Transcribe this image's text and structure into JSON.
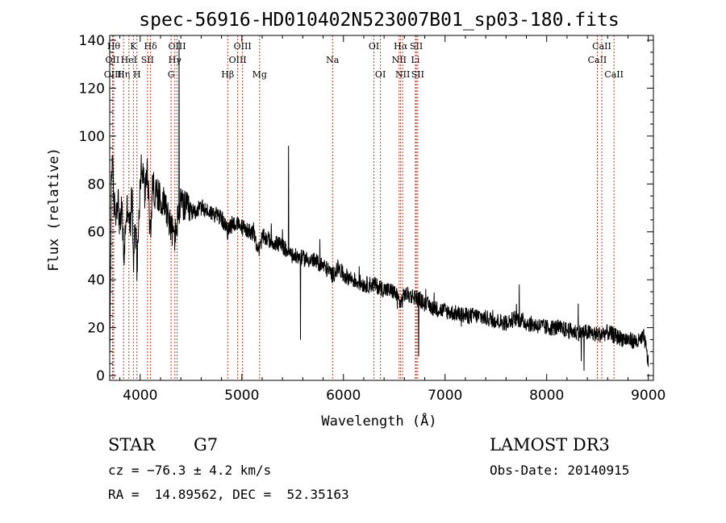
{
  "chart_data": {
    "type": "line",
    "title": "spec-56916-HD010402N523007B01_sp03-180.fits",
    "xlabel": "Wavelength (Å)",
    "ylabel": "Flux (relative)",
    "xlim": [
      3700,
      9050
    ],
    "ylim": [
      -2,
      142
    ],
    "x_ticks": [
      4000,
      5000,
      6000,
      7000,
      8000,
      9000
    ],
    "y_ticks": [
      0,
      20,
      40,
      60,
      80,
      100,
      120,
      140
    ],
    "x_tick_labels": [
      "4000",
      "5000",
      "6000",
      "7000",
      "8000",
      "9000"
    ],
    "y_tick_labels": [
      "0",
      "20",
      "40",
      "60",
      "80",
      "100",
      "120",
      "140"
    ],
    "spectrum_anchors": [
      [
        3700,
        2
      ],
      [
        3705,
        30
      ],
      [
        3715,
        80
      ],
      [
        3725,
        92
      ],
      [
        3740,
        72
      ],
      [
        3760,
        68
      ],
      [
        3780,
        75
      ],
      [
        3800,
        62
      ],
      [
        3820,
        70
      ],
      [
        3840,
        48
      ],
      [
        3860,
        66
      ],
      [
        3880,
        72
      ],
      [
        3900,
        60
      ],
      [
        3920,
        78
      ],
      [
        3935,
        42
      ],
      [
        3950,
        68
      ],
      [
        3968,
        45
      ],
      [
        3990,
        70
      ],
      [
        4010,
        88
      ],
      [
        4030,
        82
      ],
      [
        4050,
        75
      ],
      [
        4070,
        86
      ],
      [
        4101,
        58
      ],
      [
        4120,
        80
      ],
      [
        4150,
        76
      ],
      [
        4200,
        74
      ],
      [
        4250,
        72
      ],
      [
        4300,
        62
      ],
      [
        4340,
        58
      ],
      [
        4400,
        72
      ],
      [
        4450,
        70
      ],
      [
        4500,
        68
      ],
      [
        4600,
        70
      ],
      [
        4700,
        68
      ],
      [
        4800,
        66
      ],
      [
        4861,
        60
      ],
      [
        4900,
        64
      ],
      [
        5000,
        62
      ],
      [
        5100,
        60
      ],
      [
        5175,
        52
      ],
      [
        5200,
        58
      ],
      [
        5300,
        56
      ],
      [
        5400,
        54
      ],
      [
        5500,
        50
      ],
      [
        5600,
        49
      ],
      [
        5700,
        48
      ],
      [
        5800,
        46
      ],
      [
        5893,
        42
      ],
      [
        5950,
        45
      ],
      [
        6000,
        42
      ],
      [
        6100,
        40
      ],
      [
        6200,
        38
      ],
      [
        6300,
        38
      ],
      [
        6400,
        36
      ],
      [
        6500,
        35
      ],
      [
        6563,
        30
      ],
      [
        6600,
        34
      ],
      [
        6700,
        33
      ],
      [
        6800,
        30
      ],
      [
        6900,
        28
      ],
      [
        7000,
        27
      ],
      [
        7100,
        26
      ],
      [
        7200,
        25
      ],
      [
        7300,
        25
      ],
      [
        7400,
        24
      ],
      [
        7500,
        23
      ],
      [
        7600,
        22
      ],
      [
        7700,
        24
      ],
      [
        7800,
        22
      ],
      [
        7900,
        21
      ],
      [
        8000,
        20
      ],
      [
        8100,
        20
      ],
      [
        8200,
        19
      ],
      [
        8300,
        18
      ],
      [
        8400,
        18
      ],
      [
        8500,
        17
      ],
      [
        8600,
        18
      ],
      [
        8700,
        16
      ],
      [
        8800,
        15
      ],
      [
        8900,
        14
      ],
      [
        8960,
        16
      ],
      [
        9000,
        5
      ]
    ],
    "spikes": [
      [
        4383,
        140
      ],
      [
        5460,
        96
      ],
      [
        5577,
        15
      ],
      [
        7730,
        38
      ],
      [
        8340,
        6
      ],
      [
        8368,
        2
      ],
      [
        8310,
        30
      ],
      [
        6740,
        8
      ]
    ],
    "line_markers": [
      {
        "x": 3740,
        "labels": [
          "Hθ"
        ],
        "row": 0
      },
      {
        "x": 3727,
        "labels": [
          "OII"
        ],
        "row": 1
      },
      {
        "x": 3730,
        "labels": [
          "OIII"
        ],
        "row": 2
      },
      {
        "x": 3836,
        "labels": [
          "Hη"
        ],
        "row": 2
      },
      {
        "x": 3889,
        "labels": [
          "HeI"
        ],
        "row": 1
      },
      {
        "x": 3933,
        "labels": [
          "K"
        ],
        "row": 0
      },
      {
        "x": 3968,
        "labels": [
          "H"
        ],
        "row": 2
      },
      {
        "x": 4072,
        "labels": [
          "SII"
        ],
        "row": 1
      },
      {
        "x": 4102,
        "labels": [
          "Hδ"
        ],
        "row": 0
      },
      {
        "x": 4304,
        "labels": [
          "G"
        ],
        "row": 2
      },
      {
        "x": 4341,
        "labels": [
          "Hγ"
        ],
        "row": 1
      },
      {
        "x": 4363,
        "labels": [
          "OIII"
        ],
        "row": 0
      },
      {
        "x": 4861,
        "labels": [
          "Hβ"
        ],
        "row": 2
      },
      {
        "x": 4959,
        "labels": [
          "OIII"
        ],
        "row": 1
      },
      {
        "x": 5007,
        "labels": [
          "OIII"
        ],
        "row": 0
      },
      {
        "x": 5175,
        "labels": [
          "Mg"
        ],
        "row": 2
      },
      {
        "x": 5893,
        "labels": [
          "Na"
        ],
        "row": 1
      },
      {
        "x": 6300,
        "labels": [
          "OI"
        ],
        "row": 0
      },
      {
        "x": 6364,
        "labels": [
          "OI"
        ],
        "row": 2
      },
      {
        "x": 6548,
        "labels": [
          "NII"
        ],
        "row": 1
      },
      {
        "x": 6563,
        "labels": [
          "Hα"
        ],
        "row": 0
      },
      {
        "x": 6583,
        "labels": [
          "NII"
        ],
        "row": 2
      },
      {
        "x": 6708,
        "labels": [
          "Li"
        ],
        "row": 1
      },
      {
        "x": 6717,
        "labels": [
          "SII"
        ],
        "row": 0
      },
      {
        "x": 6731,
        "labels": [
          "SII"
        ],
        "row": 2
      },
      {
        "x": 8498,
        "labels": [
          "CaII"
        ],
        "row": 1
      },
      {
        "x": 8542,
        "labels": [
          "CaII"
        ],
        "row": 0
      },
      {
        "x": 8662,
        "labels": [
          "CaII"
        ],
        "row": 2
      }
    ]
  },
  "info": {
    "object_class": "STAR",
    "subclass": "G7",
    "survey": "LAMOST DR3",
    "cz": "cz = −76.3 ± 4.2 km/s",
    "obs_date": "Obs-Date: 20140915",
    "coords": "RA =  14.89562, DEC =  52.35163"
  },
  "colors": {
    "axis": "#000000",
    "spectrum": "#000000",
    "marker_line": "#c0392b"
  }
}
